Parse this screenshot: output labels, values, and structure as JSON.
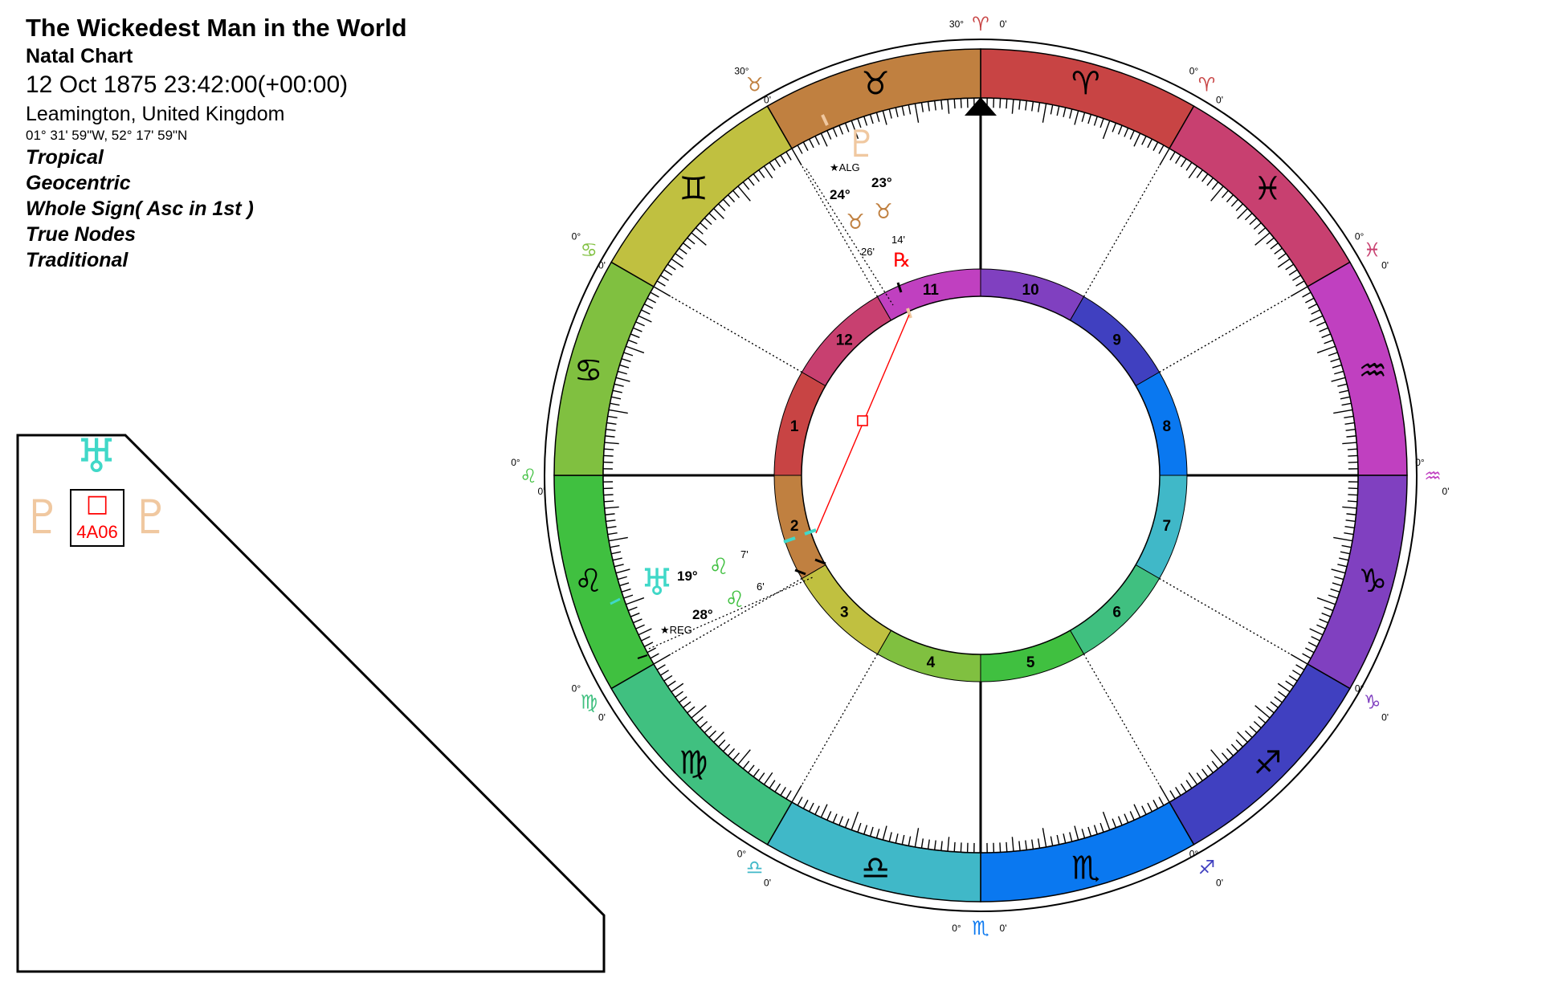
{
  "header": {
    "title": "The Wickedest Man in the World",
    "chart_type": "Natal Chart",
    "datetime": "12 Oct 1875 23:42:00(+00:00)",
    "location": "Leamington, United Kingdom",
    "coordinates": "01° 31' 59\"W, 52° 17' 59\"N",
    "options": [
      "Tropical",
      "Geocentric",
      "Whole Sign( Asc in 1st )",
      "True Nodes",
      "Traditional"
    ]
  },
  "colors": {
    "uranus": "#40d8c8",
    "pluto": "#f0c8a0",
    "aspect_square": "#ff0000",
    "background": "#ffffff"
  },
  "aspect_grid": {
    "top_planet": {
      "glyph": "♅",
      "icon": "uranus-icon"
    },
    "side_planets": [
      {
        "glyph": "♇",
        "icon": "pluto-icon"
      },
      {
        "glyph": "♇",
        "icon": "pluto-icon"
      }
    ],
    "aspect_symbol": "□",
    "aspect_label": "4A06"
  },
  "wheel": {
    "signs": [
      {
        "glyph": "♈",
        "name": "aries-icon",
        "color": "#c84444"
      },
      {
        "glyph": "♓",
        "name": "pisces-icon",
        "color": "#c84070"
      },
      {
        "glyph": "♒",
        "name": "aquarius-icon",
        "color": "#c040c0"
      },
      {
        "glyph": "♑",
        "name": "capricorn-icon",
        "color": "#8040c0"
      },
      {
        "glyph": "♐",
        "name": "sagittarius-icon",
        "color": "#4040c0"
      },
      {
        "glyph": "♏",
        "name": "scorpio-icon",
        "color": "#0a78f0"
      },
      {
        "glyph": "♎",
        "name": "libra-icon",
        "color": "#40b8c8"
      },
      {
        "glyph": "♍",
        "name": "virgo-icon",
        "color": "#40c080"
      },
      {
        "glyph": "♌",
        "name": "leo-icon",
        "color": "#40c040"
      },
      {
        "glyph": "♋",
        "name": "cancer-icon",
        "color": "#80c040"
      },
      {
        "glyph": "♊",
        "name": "gemini-icon",
        "color": "#c0c040"
      },
      {
        "glyph": "♉",
        "name": "taurus-icon",
        "color": "#c08040"
      }
    ],
    "outer_sign_labels": [
      {
        "glyph": "♈",
        "name": "aries-cusp-label",
        "color": "#c84444",
        "deg": "30°",
        "min": "0'"
      },
      {
        "glyph": "♈",
        "name": "aries-cusp-label",
        "color": "#c84444",
        "deg": "0°",
        "min": "0'"
      },
      {
        "glyph": "♓",
        "name": "pisces-cusp-label",
        "color": "#c84070",
        "deg": "0°",
        "min": "0'"
      },
      {
        "glyph": "♒",
        "name": "aquarius-cusp-label",
        "color": "#c040c0",
        "deg": "0°",
        "min": "0'"
      },
      {
        "glyph": "♑",
        "name": "capricorn-cusp-label",
        "color": "#8040c0",
        "deg": "0°",
        "min": "0'"
      },
      {
        "glyph": "♐",
        "name": "sagittarius-cusp-label",
        "color": "#4040c0",
        "deg": "0°",
        "min": "0'"
      },
      {
        "glyph": "♏",
        "name": "scorpio-cusp-label",
        "color": "#0a78f0",
        "deg": "0°",
        "min": "0'"
      },
      {
        "glyph": "♎",
        "name": "libra-cusp-label",
        "color": "#40b8c8",
        "deg": "0°",
        "min": "0'"
      },
      {
        "glyph": "♍",
        "name": "virgo-cusp-label",
        "color": "#40c080",
        "deg": "0°",
        "min": "0'"
      },
      {
        "glyph": "♌",
        "name": "leo-cusp-label",
        "color": "#40c040",
        "deg": "0°",
        "min": "0'"
      },
      {
        "glyph": "♋",
        "name": "cancer-cusp-label",
        "color": "#80c040",
        "deg": "0°",
        "min": "0'"
      },
      {
        "glyph": "♉",
        "name": "taurus-cusp-label",
        "color": "#c08040",
        "deg": "30°",
        "min": "0'"
      }
    ],
    "houses": [
      {
        "num": "10",
        "color": "#8040c0"
      },
      {
        "num": "9",
        "color": "#4040c0"
      },
      {
        "num": "8",
        "color": "#0a78f0"
      },
      {
        "num": "7",
        "color": "#40b8c8"
      },
      {
        "num": "6",
        "color": "#40c080"
      },
      {
        "num": "5",
        "color": "#40c040"
      },
      {
        "num": "4",
        "color": "#80c040"
      },
      {
        "num": "3",
        "color": "#c0c040"
      },
      {
        "num": "2",
        "color": "#c08040"
      },
      {
        "num": "1",
        "color": "#c84444"
      },
      {
        "num": "12",
        "color": "#c84070"
      },
      {
        "num": "11",
        "color": "#c040c0"
      }
    ],
    "planets": [
      {
        "name": "Pluto",
        "glyph": "♇",
        "color": "#f0c8a0",
        "deg": "23°",
        "sign_glyph": "♉",
        "sign_color": "#c08040",
        "min": "14'",
        "retro": "℞"
      },
      {
        "name": "Uranus",
        "glyph": "♅",
        "color": "#40d8c8",
        "deg": "19°",
        "sign_glyph": "♌",
        "sign_color": "#40c040",
        "min": "7'",
        "retro": ""
      }
    ],
    "stars": [
      {
        "label": "★ALG",
        "deg": "24°",
        "sign_glyph": "♉",
        "sign_color": "#c08040",
        "min": "26'"
      },
      {
        "label": "★REG",
        "deg": "28°",
        "sign_glyph": "♌",
        "sign_color": "#40c040",
        "min": "6'"
      }
    ]
  }
}
